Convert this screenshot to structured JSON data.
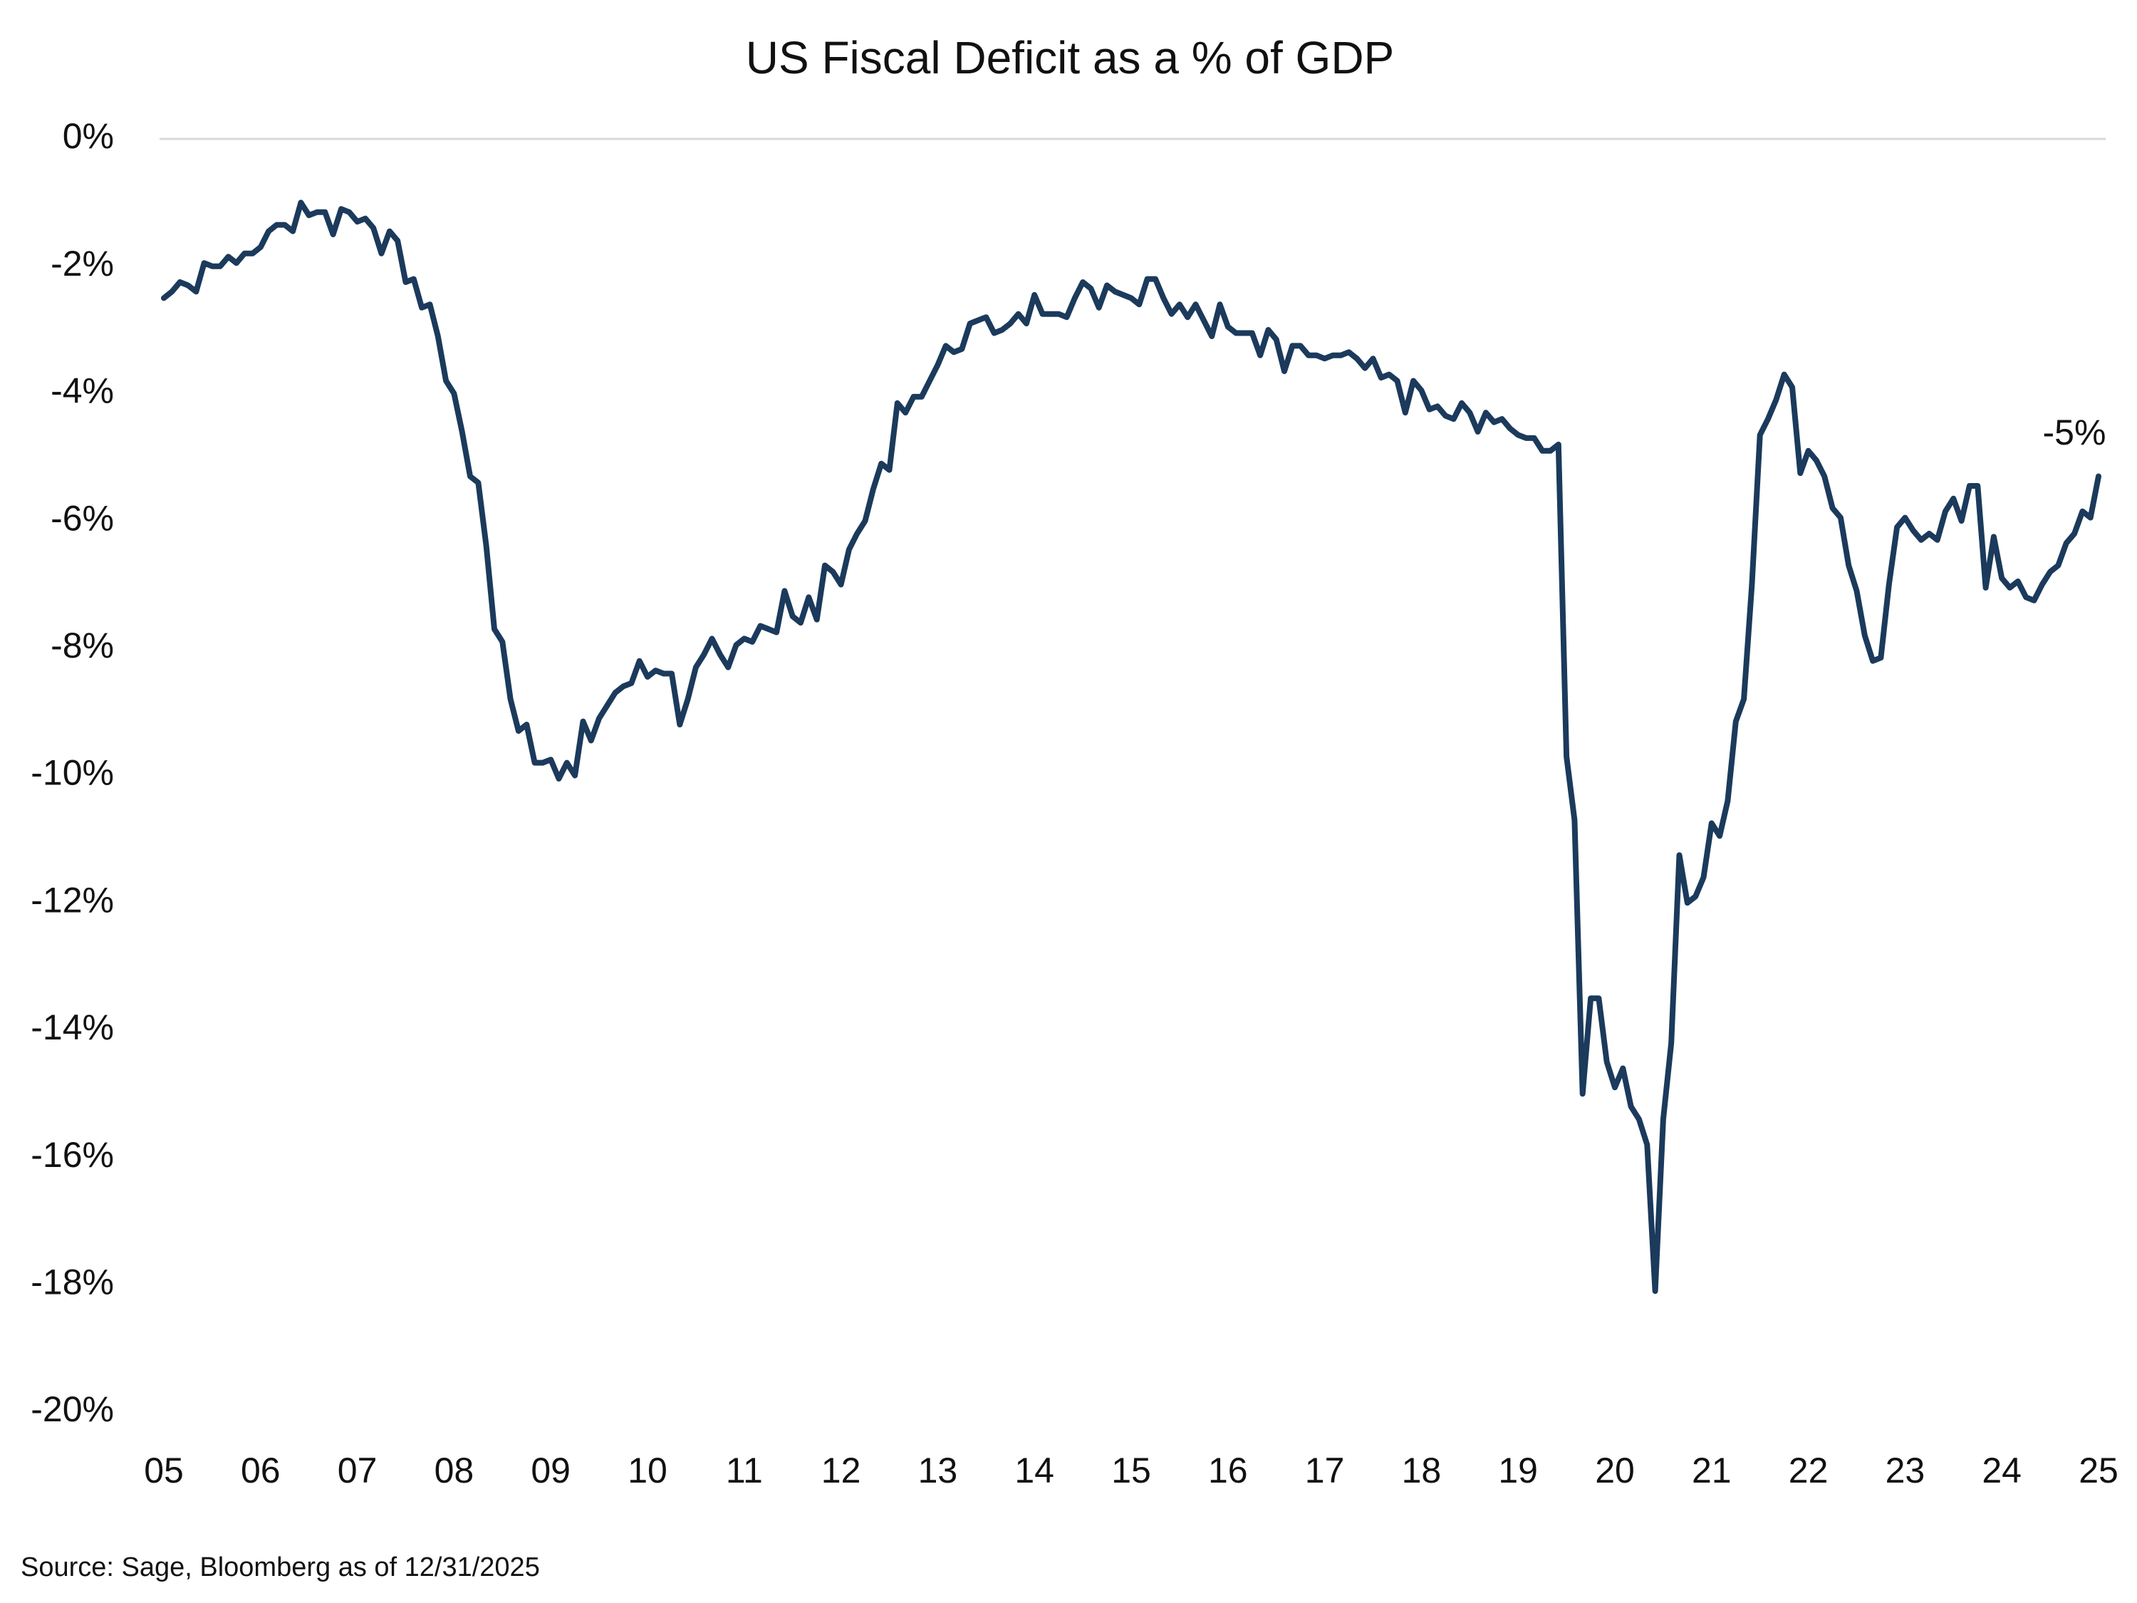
{
  "chart_data": {
    "type": "line",
    "title": "US Fiscal Deficit as a % of GDP",
    "source": "Source: Sage, Bloomberg as of 12/31/2025",
    "annotation": "-5%",
    "categories": [
      "05",
      null,
      null,
      null,
      null,
      null,
      null,
      null,
      null,
      null,
      null,
      null,
      "06",
      null,
      null,
      null,
      null,
      null,
      null,
      null,
      null,
      null,
      null,
      null,
      "07",
      null,
      null,
      null,
      null,
      null,
      null,
      null,
      null,
      null,
      null,
      null,
      "08",
      null,
      null,
      null,
      null,
      null,
      null,
      null,
      null,
      null,
      null,
      null,
      "09",
      null,
      null,
      null,
      null,
      null,
      null,
      null,
      null,
      null,
      null,
      null,
      "10",
      null,
      null,
      null,
      null,
      null,
      null,
      null,
      null,
      null,
      null,
      null,
      "11",
      null,
      null,
      null,
      null,
      null,
      null,
      null,
      null,
      null,
      null,
      null,
      "12",
      null,
      null,
      null,
      null,
      null,
      null,
      null,
      null,
      null,
      null,
      null,
      "13",
      null,
      null,
      null,
      null,
      null,
      null,
      null,
      null,
      null,
      null,
      null,
      "14",
      null,
      null,
      null,
      null,
      null,
      null,
      null,
      null,
      null,
      null,
      null,
      "15",
      null,
      null,
      null,
      null,
      null,
      null,
      null,
      null,
      null,
      null,
      null,
      "16",
      null,
      null,
      null,
      null,
      null,
      null,
      null,
      null,
      null,
      null,
      null,
      "17",
      null,
      null,
      null,
      null,
      null,
      null,
      null,
      null,
      null,
      null,
      null,
      "18",
      null,
      null,
      null,
      null,
      null,
      null,
      null,
      null,
      null,
      null,
      null,
      "19",
      null,
      null,
      null,
      null,
      null,
      null,
      null,
      null,
      null,
      null,
      null,
      "20",
      null,
      null,
      null,
      null,
      null,
      null,
      null,
      null,
      null,
      null,
      null,
      "21",
      null,
      null,
      null,
      null,
      null,
      null,
      null,
      null,
      null,
      null,
      null,
      "22",
      null,
      null,
      null,
      null,
      null,
      null,
      null,
      null,
      null,
      null,
      null,
      "23",
      null,
      null,
      null,
      null,
      null,
      null,
      null,
      null,
      null,
      null,
      null,
      "24",
      null,
      null,
      null,
      null,
      null,
      null,
      null,
      null,
      null,
      null,
      null,
      "25"
    ],
    "series": [
      {
        "name": "US Fiscal Deficit",
        "color": "#1b3a5c",
        "values": [
          -2.5,
          -2.4,
          -2.25,
          -2.3,
          -2.4,
          -1.95,
          -2.0,
          -2.0,
          -1.85,
          -1.95,
          -1.8,
          -1.8,
          -1.7,
          -1.45,
          -1.35,
          -1.35,
          -1.45,
          -1.0,
          -1.2,
          -1.15,
          -1.15,
          -1.5,
          -1.1,
          -1.15,
          -1.3,
          -1.25,
          -1.4,
          -1.8,
          -1.45,
          -1.6,
          -2.25,
          -2.2,
          -2.65,
          -2.6,
          -3.1,
          -3.8,
          -4.0,
          -4.6,
          -5.3,
          -5.4,
          -6.4,
          -7.7,
          -7.9,
          -8.8,
          -9.3,
          -9.2,
          -9.8,
          -9.8,
          -9.75,
          -10.05,
          -9.8,
          -10.0,
          -9.15,
          -9.45,
          -9.1,
          -8.9,
          -8.7,
          -8.6,
          -8.55,
          -8.2,
          -8.45,
          -8.35,
          -8.4,
          -8.4,
          -9.2,
          -8.8,
          -8.3,
          -8.1,
          -7.85,
          -8.1,
          -8.3,
          -7.95,
          -7.85,
          -7.9,
          -7.65,
          -7.7,
          -7.75,
          -7.1,
          -7.5,
          -7.6,
          -7.2,
          -7.55,
          -6.7,
          -6.8,
          -7.0,
          -6.45,
          -6.2,
          -6.0,
          -5.5,
          -5.1,
          -5.2,
          -4.15,
          -4.3,
          -4.05,
          -4.05,
          -3.8,
          -3.55,
          -3.25,
          -3.35,
          -3.3,
          -2.9,
          -2.85,
          -2.8,
          -3.05,
          -3.0,
          -2.9,
          -2.75,
          -2.9,
          -2.45,
          -2.75,
          -2.75,
          -2.75,
          -2.8,
          -2.5,
          -2.25,
          -2.35,
          -2.65,
          -2.3,
          -2.4,
          -2.45,
          -2.5,
          -2.6,
          -2.2,
          -2.2,
          -2.5,
          -2.75,
          -2.6,
          -2.8,
          -2.6,
          -2.85,
          -3.1,
          -2.6,
          -2.95,
          -3.05,
          -3.05,
          -3.05,
          -3.4,
          -3.0,
          -3.15,
          -3.65,
          -3.25,
          -3.25,
          -3.4,
          -3.4,
          -3.45,
          -3.4,
          -3.4,
          -3.35,
          -3.45,
          -3.6,
          -3.45,
          -3.75,
          -3.7,
          -3.8,
          -4.3,
          -3.8,
          -3.95,
          -4.25,
          -4.2,
          -4.35,
          -4.4,
          -4.15,
          -4.3,
          -4.6,
          -4.3,
          -4.45,
          -4.4,
          -4.55,
          -4.65,
          -4.7,
          -4.7,
          -4.9,
          -4.9,
          -4.8,
          -9.7,
          -10.7,
          -15.0,
          -13.5,
          -13.5,
          -14.5,
          -14.9,
          -14.6,
          -15.2,
          -15.4,
          -15.8,
          -18.1,
          -15.4,
          -14.2,
          -11.25,
          -12.0,
          -11.9,
          -11.6,
          -10.75,
          -10.95,
          -10.4,
          -9.15,
          -8.8,
          -7.0,
          -4.65,
          -4.4,
          -4.1,
          -3.7,
          -3.9,
          -5.25,
          -4.9,
          -5.05,
          -5.3,
          -5.8,
          -5.95,
          -6.7,
          -7.1,
          -7.8,
          -8.2,
          -8.15,
          -7.0,
          -6.1,
          -5.95,
          -6.15,
          -6.3,
          -6.2,
          -6.3,
          -5.85,
          -5.65,
          -6.0,
          -5.45,
          -5.45,
          -7.05,
          -6.25,
          -6.9,
          -7.05,
          -6.95,
          -7.2,
          -7.25,
          -7.0,
          -6.8,
          -6.7,
          -6.35,
          -6.2,
          -5.85,
          -5.95,
          -5.3
        ]
      }
    ],
    "ylim": [
      -20,
      0
    ],
    "yticks": [
      {
        "value": 0,
        "label": "0%"
      },
      {
        "value": -2,
        "label": "-2%"
      },
      {
        "value": -4,
        "label": "-4%"
      },
      {
        "value": -6,
        "label": "-6%"
      },
      {
        "value": -8,
        "label": "-8%"
      },
      {
        "value": -10,
        "label": "-10%"
      },
      {
        "value": -12,
        "label": "-12%"
      },
      {
        "value": -14,
        "label": "-14%"
      },
      {
        "value": -16,
        "label": "-16%"
      },
      {
        "value": -18,
        "label": "-18%"
      },
      {
        "value": -20,
        "label": "-20%"
      }
    ],
    "grid": false,
    "zero_line": true
  }
}
